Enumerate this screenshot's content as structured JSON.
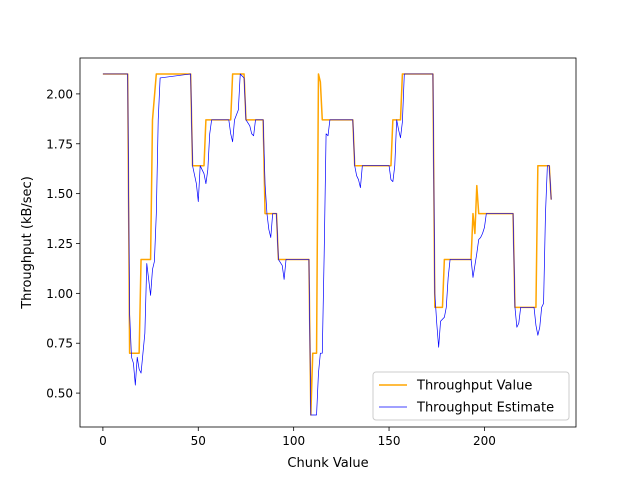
{
  "chart_data": {
    "type": "line",
    "title": "",
    "xlabel": "Chunk Value",
    "ylabel": "Throughput (kB/sec)",
    "xlim": [
      -12,
      248
    ],
    "ylim": [
      0.33,
      2.18
    ],
    "xticks": [
      0,
      50,
      100,
      150,
      200
    ],
    "yticks": [
      0.5,
      0.75,
      1.0,
      1.25,
      1.5,
      1.75,
      2.0
    ],
    "legend_position": "bottom-right",
    "grid": false,
    "series": [
      {
        "name": "Throughput Value",
        "color": "#ffa500",
        "points": [
          [
            0,
            2.1
          ],
          [
            13,
            2.1
          ],
          [
            14,
            0.7
          ],
          [
            19,
            0.7
          ],
          [
            20,
            1.17
          ],
          [
            25,
            1.17
          ],
          [
            26,
            1.87
          ],
          [
            28,
            2.1
          ],
          [
            46,
            2.1
          ],
          [
            47,
            1.64
          ],
          [
            53,
            1.64
          ],
          [
            54,
            1.87
          ],
          [
            67,
            1.87
          ],
          [
            68,
            2.1
          ],
          [
            74,
            2.1
          ],
          [
            75,
            1.87
          ],
          [
            84,
            1.87
          ],
          [
            85,
            1.4
          ],
          [
            91,
            1.4
          ],
          [
            92,
            1.17
          ],
          [
            108,
            1.17
          ],
          [
            109,
            0.39
          ],
          [
            110,
            0.7
          ],
          [
            112,
            0.7
          ],
          [
            113,
            2.1
          ],
          [
            114,
            2.06
          ],
          [
            115,
            1.87
          ],
          [
            131,
            1.87
          ],
          [
            132,
            1.64
          ],
          [
            151,
            1.64
          ],
          [
            152,
            1.87
          ],
          [
            156,
            1.87
          ],
          [
            157,
            2.1
          ],
          [
            173,
            2.1
          ],
          [
            174,
            0.93
          ],
          [
            178,
            0.93
          ],
          [
            179,
            1.17
          ],
          [
            193,
            1.17
          ],
          [
            194,
            1.4
          ],
          [
            195,
            1.3
          ],
          [
            196,
            1.54
          ],
          [
            197,
            1.4
          ],
          [
            215,
            1.4
          ],
          [
            216,
            0.93
          ],
          [
            227,
            0.93
          ],
          [
            228,
            1.64
          ],
          [
            234,
            1.64
          ],
          [
            235,
            1.47
          ]
        ]
      },
      {
        "name": "Throughput Estimate",
        "color": "#0000ff",
        "points": [
          [
            0,
            2.1
          ],
          [
            13,
            2.1
          ],
          [
            14,
            0.9
          ],
          [
            15,
            0.68
          ],
          [
            16,
            0.65
          ],
          [
            17,
            0.54
          ],
          [
            18,
            0.68
          ],
          [
            19,
            0.62
          ],
          [
            20,
            0.6
          ],
          [
            21,
            0.7
          ],
          [
            22,
            0.8
          ],
          [
            23,
            1.15
          ],
          [
            24,
            1.07
          ],
          [
            25,
            0.99
          ],
          [
            26,
            1.12
          ],
          [
            27,
            1.16
          ],
          [
            28,
            1.4
          ],
          [
            29,
            1.87
          ],
          [
            30,
            2.08
          ],
          [
            46,
            2.1
          ],
          [
            47,
            1.64
          ],
          [
            49,
            1.55
          ],
          [
            50,
            1.46
          ],
          [
            51,
            1.64
          ],
          [
            53,
            1.6
          ],
          [
            54,
            1.55
          ],
          [
            55,
            1.62
          ],
          [
            56,
            1.8
          ],
          [
            57,
            1.87
          ],
          [
            66,
            1.87
          ],
          [
            67,
            1.8
          ],
          [
            68,
            1.76
          ],
          [
            69,
            1.87
          ],
          [
            71,
            1.92
          ],
          [
            72,
            2.1
          ],
          [
            74,
            2.08
          ],
          [
            75,
            1.87
          ],
          [
            77,
            1.84
          ],
          [
            78,
            1.8
          ],
          [
            79,
            1.79
          ],
          [
            80,
            1.87
          ],
          [
            84,
            1.87
          ],
          [
            85,
            1.55
          ],
          [
            86,
            1.4
          ],
          [
            87,
            1.32
          ],
          [
            88,
            1.28
          ],
          [
            89,
            1.4
          ],
          [
            91,
            1.4
          ],
          [
            92,
            1.17
          ],
          [
            94,
            1.14
          ],
          [
            95,
            1.07
          ],
          [
            96,
            1.17
          ],
          [
            108,
            1.17
          ],
          [
            109,
            0.39
          ],
          [
            112,
            0.39
          ],
          [
            113,
            0.6
          ],
          [
            114,
            0.7
          ],
          [
            115,
            0.7
          ],
          [
            116,
            1.2
          ],
          [
            117,
            1.8
          ],
          [
            118,
            1.79
          ],
          [
            119,
            1.87
          ],
          [
            131,
            1.87
          ],
          [
            132,
            1.64
          ],
          [
            133,
            1.59
          ],
          [
            134,
            1.57
          ],
          [
            135,
            1.53
          ],
          [
            136,
            1.64
          ],
          [
            150,
            1.64
          ],
          [
            151,
            1.57
          ],
          [
            152,
            1.56
          ],
          [
            153,
            1.64
          ],
          [
            154,
            1.87
          ],
          [
            155,
            1.82
          ],
          [
            156,
            1.78
          ],
          [
            157,
            1.86
          ],
          [
            158,
            2.1
          ],
          [
            173,
            2.1
          ],
          [
            174,
            1.0
          ],
          [
            175,
            0.85
          ],
          [
            176,
            0.73
          ],
          [
            177,
            0.86
          ],
          [
            178,
            0.87
          ],
          [
            179,
            0.88
          ],
          [
            180,
            0.93
          ],
          [
            181,
            1.08
          ],
          [
            182,
            1.17
          ],
          [
            193,
            1.17
          ],
          [
            194,
            1.08
          ],
          [
            195,
            1.14
          ],
          [
            196,
            1.2
          ],
          [
            197,
            1.27
          ],
          [
            198,
            1.28
          ],
          [
            199,
            1.3
          ],
          [
            200,
            1.33
          ],
          [
            201,
            1.4
          ],
          [
            215,
            1.4
          ],
          [
            216,
            0.93
          ],
          [
            217,
            0.83
          ],
          [
            218,
            0.85
          ],
          [
            219,
            0.93
          ],
          [
            226,
            0.93
          ],
          [
            227,
            0.84
          ],
          [
            228,
            0.79
          ],
          [
            229,
            0.83
          ],
          [
            230,
            0.93
          ],
          [
            231,
            0.95
          ],
          [
            232,
            1.4
          ],
          [
            233,
            1.64
          ],
          [
            234,
            1.64
          ],
          [
            235,
            1.47
          ]
        ]
      }
    ]
  }
}
